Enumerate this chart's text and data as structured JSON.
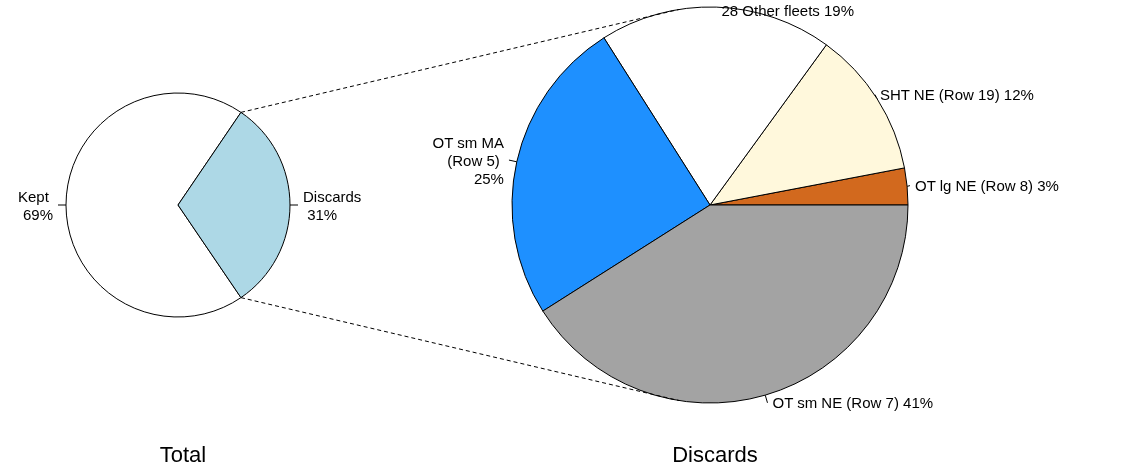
{
  "chart_data": [
    {
      "type": "pie",
      "title": "Total",
      "categories": [
        "Kept",
        "Discards"
      ],
      "values": [
        69,
        31
      ],
      "colors": [
        "#ffffff",
        "#add8e6"
      ],
      "value_labels": [
        "69%",
        "31%"
      ]
    },
    {
      "type": "pie",
      "title": "Discards",
      "categories": [
        "OT lg NE (Row 8)",
        "SHT NE (Row 19)",
        "28 Other fleets",
        "OT sm MA (Row 5)",
        "OT sm NE (Row 7)"
      ],
      "values": [
        3,
        12,
        19,
        25,
        41
      ],
      "colors": [
        "#d2691e",
        "#fff8dc",
        "#ffffff",
        "#1e90ff",
        "#a3a3a3"
      ],
      "value_labels": [
        "3%",
        "12%",
        "19%",
        "25%",
        "41%"
      ]
    }
  ]
}
